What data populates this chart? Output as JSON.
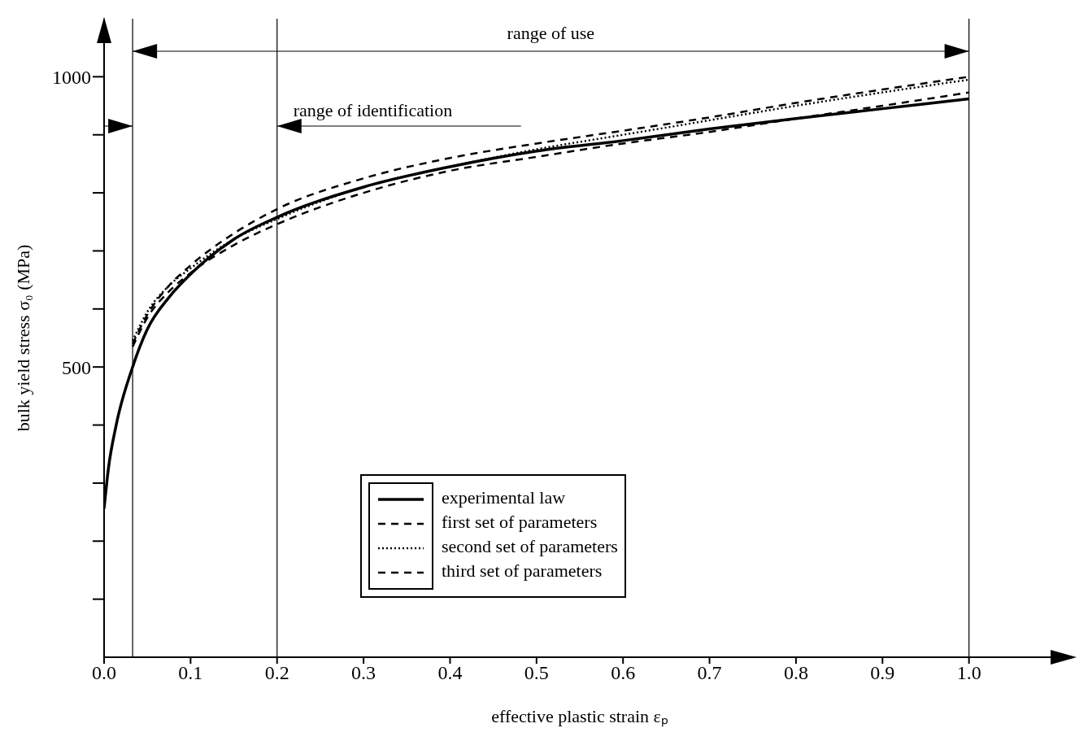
{
  "chart_data": {
    "type": "line",
    "xlabel": "effective plastic strain εₚ",
    "ylabel": "bulk yield stress σ₀ (MPa)",
    "xlim": [
      0,
      1.1
    ],
    "ylim": [
      0,
      1100
    ],
    "xticks": [
      {
        "value": 0,
        "label": "0.0"
      },
      0.1,
      0.2,
      0.3,
      0.4,
      0.5,
      0.6,
      0.7,
      0.8,
      0.9,
      {
        "value": 1.0,
        "label": "1.0"
      }
    ],
    "yticks": [
      {
        "value": 100,
        "label": null
      },
      {
        "value": 200,
        "label": null
      },
      {
        "value": 300,
        "label": null
      },
      {
        "value": 400,
        "label": null
      },
      500,
      {
        "value": 600,
        "label": null
      },
      {
        "value": 700,
        "label": null
      },
      {
        "value": 800,
        "label": null
      },
      {
        "value": 900,
        "label": null
      },
      1000
    ],
    "grid": false,
    "legend": "bottom",
    "series": [
      {
        "name": "experimental law",
        "color": "#000000",
        "line_style": "solid",
        "x": [
          0,
          0.005,
          0.014,
          0.033,
          0.05,
          0.075,
          0.1,
          0.15,
          0.2,
          0.3,
          0.4,
          0.5,
          0.6,
          0.7,
          0.8,
          0.9,
          1.0
        ],
        "values": [
          256,
          325,
          400,
          500,
          565,
          620,
          660,
          720,
          758,
          810,
          845,
          872,
          890,
          910,
          928,
          945,
          962
        ]
      },
      {
        "name": "first set of parameters",
        "color": "#000000",
        "line_style": "dashed",
        "x": [
          0.033,
          0.05,
          0.075,
          0.1,
          0.15,
          0.2,
          0.3,
          0.4,
          0.5,
          0.6,
          0.7,
          0.8,
          0.9,
          1.0
        ],
        "values": [
          540,
          590,
          640,
          675,
          730,
          772,
          825,
          860,
          885,
          907,
          930,
          955,
          978,
          1000
        ]
      },
      {
        "name": "second set of parameters",
        "color": "#000000",
        "line_style": "dotted",
        "x": [
          0.033,
          0.05,
          0.075,
          0.1,
          0.15,
          0.2,
          0.3,
          0.4,
          0.5,
          0.6,
          0.7,
          0.8,
          0.9,
          1.0
        ],
        "values": [
          545,
          595,
          640,
          670,
          720,
          755,
          810,
          845,
          875,
          900,
          925,
          950,
          973,
          995
        ]
      },
      {
        "name": "third set of parameters",
        "color": "#000000",
        "line_style": "dashed",
        "x": [
          0.033,
          0.05,
          0.075,
          0.1,
          0.15,
          0.2,
          0.3,
          0.4,
          0.5,
          0.6,
          0.7,
          0.8,
          0.9,
          1.0
        ],
        "values": [
          535,
          585,
          630,
          662,
          710,
          746,
          800,
          838,
          862,
          885,
          905,
          928,
          950,
          973
        ]
      }
    ],
    "ref_lines": [
      {
        "axis": "x",
        "value": 0.033,
        "color": "#000000"
      },
      {
        "axis": "x",
        "value": 0.2,
        "color": "#000000"
      },
      {
        "axis": "x",
        "value": 1.0,
        "color": "#000000"
      }
    ],
    "annotations": [
      "range of use",
      "range of identification"
    ]
  }
}
